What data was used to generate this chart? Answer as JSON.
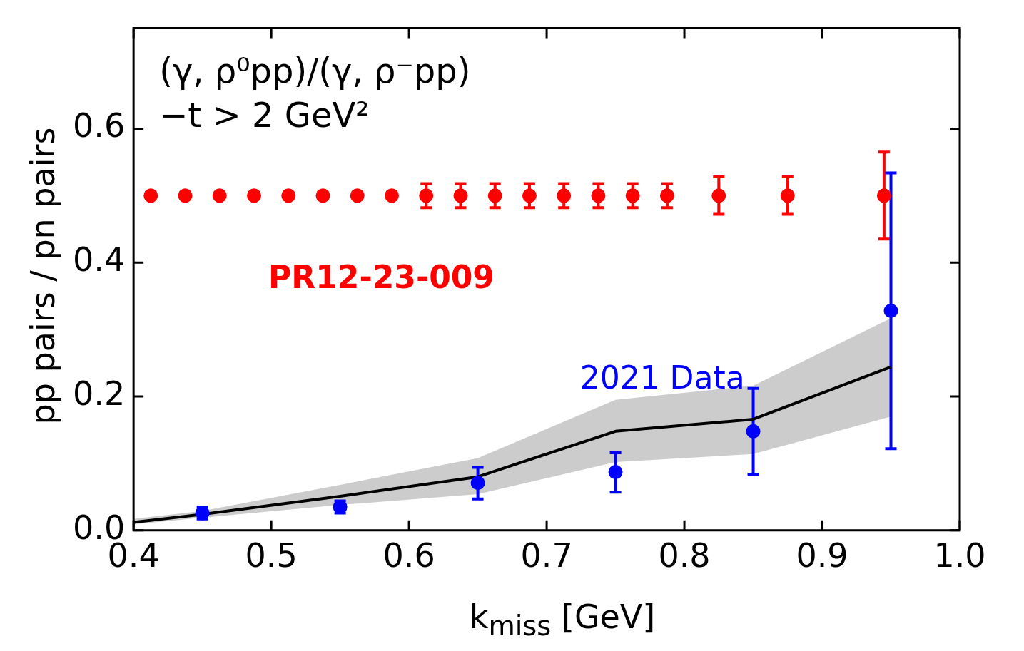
{
  "chart_data": {
    "type": "scatter",
    "xlabel": "k$_{miss}$ [GeV]",
    "ylabel": "pp pairs / pn pairs",
    "annotations": [
      "(γ, ρ⁰pp)/(γ, ρ⁻pp)",
      "−t > 2 GeV²"
    ],
    "xlim": [
      0.4,
      1.0
    ],
    "xticks": [
      0.4,
      0.5,
      0.6,
      0.7,
      0.8,
      0.9,
      {
        "value": 1.0,
        "label": "1.0"
      }
    ],
    "ylim": [
      0,
      0.75
    ],
    "yticks": [
      {
        "value": 0,
        "label": "0.0"
      },
      0.2,
      0.4,
      0.6
    ],
    "grid": false,
    "legend": false,
    "marker": "circle",
    "series": [
      {
        "name": "PR12-23-009",
        "color": "#ff0000",
        "x": [
          0.4125,
          0.4375,
          0.4625,
          0.4875,
          0.5125,
          0.5375,
          0.5625,
          0.5875,
          0.6125,
          0.6375,
          0.6625,
          0.6875,
          0.7125,
          0.7375,
          0.7625,
          0.7875,
          0.825,
          0.875,
          0.945
        ],
        "values": [
          0.5,
          0.5,
          0.5,
          0.5,
          0.5,
          0.5,
          0.5,
          0.5,
          0.5,
          0.5,
          0.5,
          0.5,
          0.5,
          0.5,
          0.5,
          0.5,
          0.5,
          0.5,
          0.5
        ],
        "errors": [
          0.005,
          0.005,
          0.005,
          0.005,
          0.005,
          0.005,
          0.005,
          0.005,
          0.018,
          0.018,
          0.018,
          0.018,
          0.018,
          0.018,
          0.018,
          0.018,
          0.028,
          0.028,
          0.065
        ]
      },
      {
        "name": "2021 Data",
        "color": "#0000ff",
        "x": [
          0.45,
          0.55,
          0.65,
          0.75,
          0.85,
          0.95
        ],
        "values": [
          0.026,
          0.035,
          0.071,
          0.087,
          0.148,
          0.328
        ],
        "errors": [
          [
            0.017,
            0.035
          ],
          [
            0.026,
            0.044
          ],
          [
            0.047,
            0.094
          ],
          [
            0.057,
            0.116
          ],
          [
            0.084,
            0.212
          ],
          [
            0.122,
            0.534
          ]
        ]
      },
      {
        "type": "line",
        "color": "#000000",
        "marker": "none",
        "x": [
          0.4,
          0.45,
          0.55,
          0.65,
          0.75,
          0.85,
          0.95
        ],
        "values": [
          0.012,
          0.024,
          0.051,
          0.08,
          0.148,
          0.166,
          0.244
        ],
        "lower": [
          0.009,
          0.019,
          0.038,
          0.054,
          0.102,
          0.114,
          0.17
        ],
        "upper": [
          0.017,
          0.029,
          0.068,
          0.108,
          0.195,
          0.216,
          0.317
        ]
      }
    ]
  }
}
